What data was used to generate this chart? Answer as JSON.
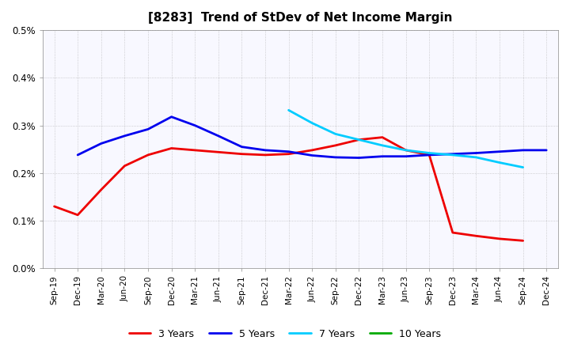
{
  "title": "[8283]  Trend of StDev of Net Income Margin",
  "x_labels": [
    "Sep-19",
    "Dec-19",
    "Mar-20",
    "Jun-20",
    "Sep-20",
    "Dec-20",
    "Mar-21",
    "Jun-21",
    "Sep-21",
    "Dec-21",
    "Mar-22",
    "Jun-22",
    "Sep-22",
    "Dec-22",
    "Mar-23",
    "Jun-23",
    "Sep-23",
    "Dec-23",
    "Mar-24",
    "Jun-24",
    "Sep-24",
    "Dec-24"
  ],
  "series_order": [
    "3 Years",
    "5 Years",
    "7 Years",
    "10 Years"
  ],
  "series": {
    "3 Years": {
      "color": "#ee0000",
      "x_indices": [
        0,
        1,
        2,
        3,
        4,
        5,
        6,
        7,
        8,
        9,
        10,
        11,
        12,
        13,
        14,
        15,
        16,
        17,
        18,
        19,
        20
      ],
      "values": [
        0.0013,
        0.00112,
        0.00165,
        0.00215,
        0.00238,
        0.00252,
        0.00248,
        0.00244,
        0.0024,
        0.00238,
        0.0024,
        0.00248,
        0.00258,
        0.0027,
        0.00275,
        0.00248,
        0.00238,
        0.00075,
        0.00068,
        0.00062,
        0.00058
      ]
    },
    "5 Years": {
      "color": "#0000ee",
      "x_indices": [
        1,
        2,
        3,
        4,
        5,
        6,
        7,
        8,
        9,
        10,
        11,
        12,
        13,
        14,
        15,
        16,
        17,
        18,
        19,
        20,
        21
      ],
      "values": [
        0.00238,
        0.00262,
        0.00278,
        0.00292,
        0.00318,
        0.003,
        0.00278,
        0.00255,
        0.00248,
        0.00245,
        0.00237,
        0.00233,
        0.00232,
        0.00235,
        0.00235,
        0.00238,
        0.0024,
        0.00242,
        0.00245,
        0.00248,
        0.00248
      ]
    },
    "7 Years": {
      "color": "#00ccff",
      "x_indices": [
        10,
        11,
        12,
        13,
        14,
        15,
        16,
        17,
        18,
        19,
        20
      ],
      "values": [
        0.00332,
        0.00305,
        0.00282,
        0.0027,
        0.00258,
        0.00248,
        0.00242,
        0.00238,
        0.00233,
        0.00222,
        0.00212
      ]
    },
    "10 Years": {
      "color": "#00aa00",
      "x_indices": [],
      "values": []
    }
  },
  "ylim": [
    0,
    0.005
  ],
  "yticks": [
    0.0,
    0.001,
    0.002,
    0.003,
    0.004,
    0.005
  ],
  "ytick_labels": [
    "0.0%",
    "0.1%",
    "0.2%",
    "0.3%",
    "0.4%",
    "0.5%"
  ],
  "background_color": "#ffffff",
  "plot_bg_color": "#f8f8ff",
  "grid_color": "#aaaaaa",
  "linewidth": 2.0
}
